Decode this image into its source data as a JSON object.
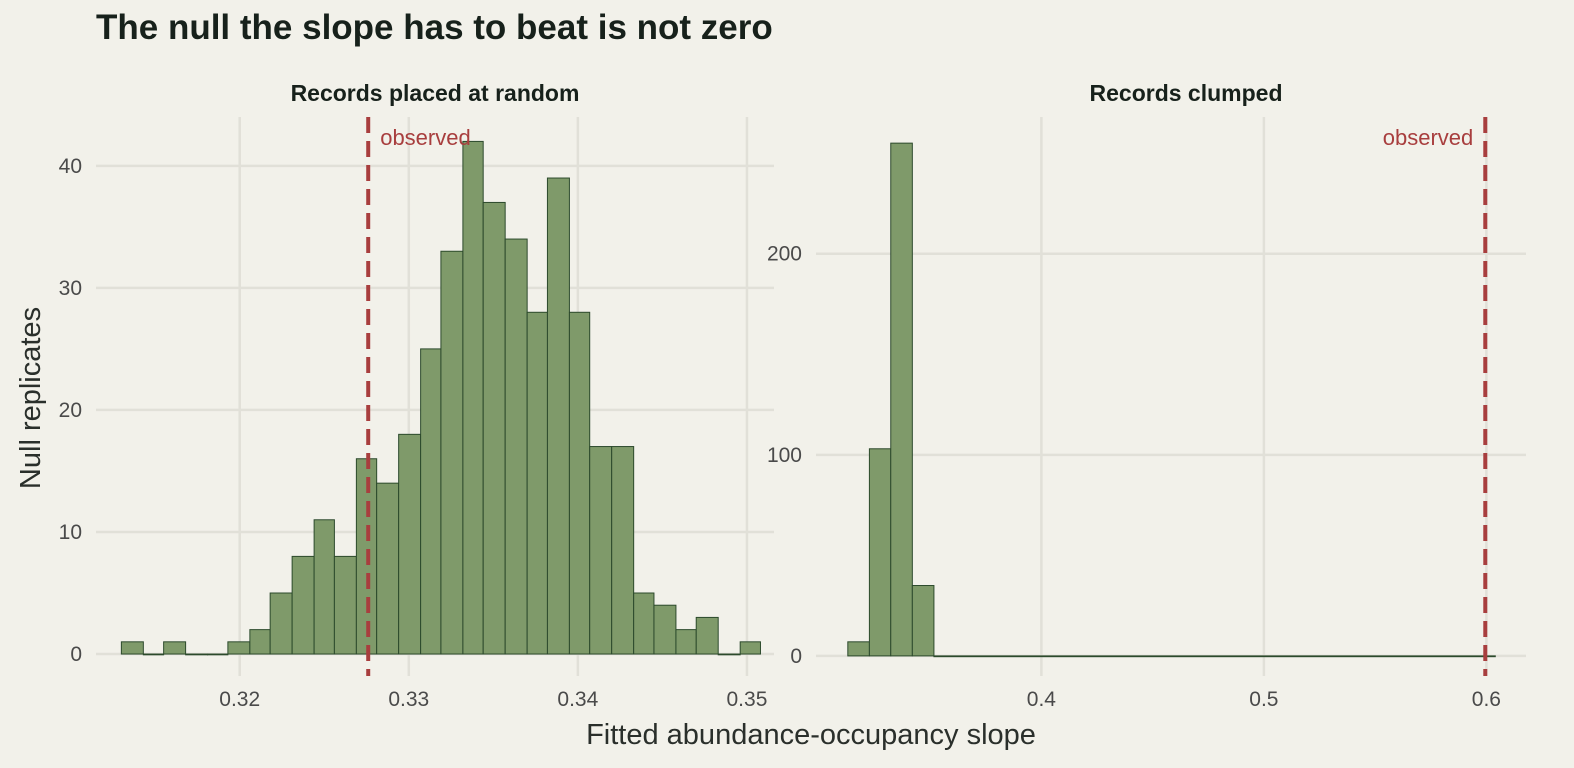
{
  "colors": {
    "background": "#f2f1ea",
    "grid": "#e1e0d8",
    "bar_fill": "#7f9a6a",
    "bar_stroke": "#2c4a2c",
    "observed": "#a83e3e",
    "title": "#17211b",
    "tick": "#4a4a4a"
  },
  "chart_data": {
    "title": "The null the slope has to beat is not zero",
    "xlabel": "Fitted abundance-occupancy slope",
    "ylabel": "Null replicates",
    "panels": [
      {
        "type": "bar",
        "title": "Records placed at random",
        "observed": 0.3276,
        "observed_label": "observed",
        "x_ticks": [
          "0.32",
          "0.33",
          "0.34",
          "0.35"
        ],
        "y_ticks": [
          "0",
          "10",
          "20",
          "30",
          "40"
        ],
        "xlim": [
          0.3115,
          0.3516
        ],
        "ylim": [
          -1.8,
          44
        ],
        "bins": [
          {
            "x0": 0.313,
            "x1": 0.3143,
            "count": 1
          },
          {
            "x0": 0.3143,
            "x1": 0.3155,
            "count": 0
          },
          {
            "x0": 0.3155,
            "x1": 0.3168,
            "count": 1
          },
          {
            "x0": 0.3168,
            "x1": 0.3181,
            "count": 0
          },
          {
            "x0": 0.3181,
            "x1": 0.3193,
            "count": 0
          },
          {
            "x0": 0.3193,
            "x1": 0.3206,
            "count": 1
          },
          {
            "x0": 0.3206,
            "x1": 0.3218,
            "count": 2
          },
          {
            "x0": 0.3218,
            "x1": 0.3231,
            "count": 5
          },
          {
            "x0": 0.3231,
            "x1": 0.3244,
            "count": 8
          },
          {
            "x0": 0.3244,
            "x1": 0.3256,
            "count": 11
          },
          {
            "x0": 0.3256,
            "x1": 0.3269,
            "count": 8
          },
          {
            "x0": 0.3269,
            "x1": 0.3281,
            "count": 16
          },
          {
            "x0": 0.3281,
            "x1": 0.3294,
            "count": 14
          },
          {
            "x0": 0.3294,
            "x1": 0.3307,
            "count": 18
          },
          {
            "x0": 0.3307,
            "x1": 0.3319,
            "count": 25
          },
          {
            "x0": 0.3319,
            "x1": 0.3332,
            "count": 33
          },
          {
            "x0": 0.3332,
            "x1": 0.3344,
            "count": 42
          },
          {
            "x0": 0.3344,
            "x1": 0.3357,
            "count": 37
          },
          {
            "x0": 0.3357,
            "x1": 0.337,
            "count": 34
          },
          {
            "x0": 0.337,
            "x1": 0.3382,
            "count": 28
          },
          {
            "x0": 0.3382,
            "x1": 0.3395,
            "count": 39
          },
          {
            "x0": 0.3395,
            "x1": 0.3407,
            "count": 28
          },
          {
            "x0": 0.3407,
            "x1": 0.342,
            "count": 17
          },
          {
            "x0": 0.342,
            "x1": 0.3433,
            "count": 17
          },
          {
            "x0": 0.3433,
            "x1": 0.3445,
            "count": 5
          },
          {
            "x0": 0.3445,
            "x1": 0.3458,
            "count": 4
          },
          {
            "x0": 0.3458,
            "x1": 0.347,
            "count": 2
          },
          {
            "x0": 0.347,
            "x1": 0.3483,
            "count": 3
          },
          {
            "x0": 0.3483,
            "x1": 0.3496,
            "count": 0
          },
          {
            "x0": 0.3496,
            "x1": 0.3508,
            "count": 1
          }
        ]
      },
      {
        "type": "bar",
        "title": "Records clumped",
        "observed": 0.5995,
        "observed_label": "observed",
        "x_ticks": [
          "0.4",
          "0.5",
          "0.6"
        ],
        "y_ticks": [
          "0",
          "100",
          "200"
        ],
        "xlim": [
          0.2987,
          0.6178
        ],
        "ylim": [
          -10,
          268
        ],
        "bins": [
          {
            "x0": 0.313,
            "x1": 0.3227,
            "count": 7
          },
          {
            "x0": 0.3227,
            "x1": 0.3323,
            "count": 103
          },
          {
            "x0": 0.3323,
            "x1": 0.342,
            "count": 255
          },
          {
            "x0": 0.342,
            "x1": 0.3517,
            "count": 35
          },
          {
            "x0": 0.3517,
            "x1": 0.604,
            "count": 0
          }
        ]
      }
    ]
  }
}
